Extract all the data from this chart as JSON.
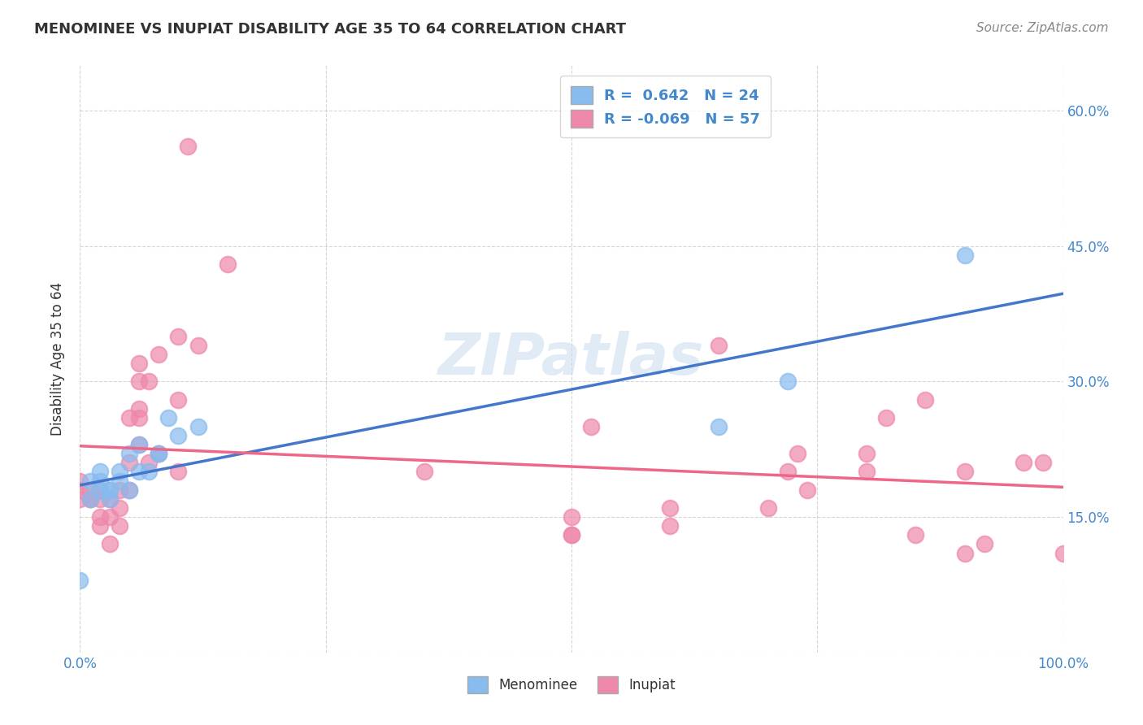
{
  "title": "MENOMINEE VS INUPIAT DISABILITY AGE 35 TO 64 CORRELATION CHART",
  "source": "Source: ZipAtlas.com",
  "ylabel": "Disability Age 35 to 64",
  "xlim": [
    0.0,
    1.0
  ],
  "ylim": [
    0.0,
    0.65
  ],
  "ytick_vals": [
    0.0,
    0.15,
    0.3,
    0.45,
    0.6
  ],
  "ytick_labels": [
    "",
    "15.0%",
    "30.0%",
    "45.0%",
    "60.0%"
  ],
  "xtick_vals": [
    0.0,
    0.25,
    0.5,
    0.75,
    1.0
  ],
  "xtick_labels": [
    "0.0%",
    "",
    "",
    "",
    "100.0%"
  ],
  "menominee_color": "#88bbee",
  "inupiat_color": "#ee88aa",
  "menominee_line_color": "#4477cc",
  "inupiat_line_color": "#ee6688",
  "menominee_R": 0.642,
  "menominee_N": 24,
  "inupiat_R": -0.069,
  "inupiat_N": 57,
  "menominee_x": [
    0.0,
    0.01,
    0.01,
    0.02,
    0.02,
    0.02,
    0.03,
    0.03,
    0.03,
    0.04,
    0.04,
    0.05,
    0.05,
    0.06,
    0.06,
    0.07,
    0.08,
    0.08,
    0.09,
    0.1,
    0.12,
    0.65,
    0.72,
    0.9
  ],
  "menominee_y": [
    0.08,
    0.17,
    0.19,
    0.18,
    0.19,
    0.2,
    0.17,
    0.18,
    0.18,
    0.19,
    0.2,
    0.18,
    0.22,
    0.2,
    0.23,
    0.2,
    0.22,
    0.22,
    0.26,
    0.24,
    0.25,
    0.25,
    0.3,
    0.44
  ],
  "inupiat_x": [
    0.0,
    0.0,
    0.0,
    0.01,
    0.01,
    0.01,
    0.02,
    0.02,
    0.02,
    0.02,
    0.03,
    0.03,
    0.03,
    0.04,
    0.04,
    0.04,
    0.05,
    0.05,
    0.05,
    0.06,
    0.06,
    0.06,
    0.06,
    0.06,
    0.07,
    0.07,
    0.08,
    0.08,
    0.1,
    0.1,
    0.1,
    0.11,
    0.12,
    0.15,
    0.35,
    0.5,
    0.5,
    0.5,
    0.52,
    0.6,
    0.6,
    0.65,
    0.7,
    0.72,
    0.73,
    0.74,
    0.8,
    0.8,
    0.82,
    0.85,
    0.86,
    0.9,
    0.9,
    0.92,
    0.96,
    0.98,
    1.0
  ],
  "inupiat_y": [
    0.17,
    0.18,
    0.19,
    0.17,
    0.17,
    0.18,
    0.14,
    0.15,
    0.17,
    0.18,
    0.12,
    0.15,
    0.17,
    0.14,
    0.16,
    0.18,
    0.18,
    0.21,
    0.26,
    0.23,
    0.26,
    0.27,
    0.3,
    0.32,
    0.21,
    0.3,
    0.22,
    0.33,
    0.2,
    0.28,
    0.35,
    0.56,
    0.34,
    0.43,
    0.2,
    0.13,
    0.13,
    0.15,
    0.25,
    0.14,
    0.16,
    0.34,
    0.16,
    0.2,
    0.22,
    0.18,
    0.2,
    0.22,
    0.26,
    0.13,
    0.28,
    0.11,
    0.2,
    0.12,
    0.21,
    0.21,
    0.11
  ],
  "watermark": "ZIPatlas",
  "background_color": "#ffffff",
  "grid_color": "#cccccc"
}
